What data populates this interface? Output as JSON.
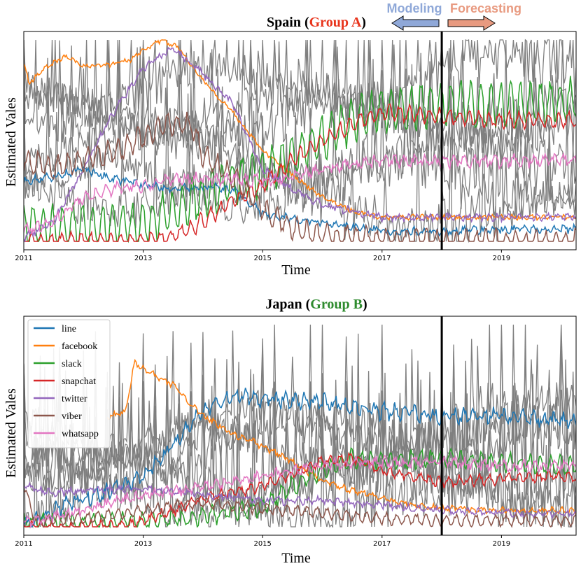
{
  "figure": {
    "modeling_label": "Modeling",
    "forecasting_label": "Forecasting",
    "colors": {
      "modeling": "#8fa8d8",
      "forecasting": "#e89a80",
      "groupA": "#e8341c",
      "groupB": "#2e8b2e"
    }
  },
  "chart_data": [
    {
      "type": "line",
      "title_country": "Spain",
      "title_group": "Group A",
      "xlabel": "Time",
      "ylabel": "Estimated Vales",
      "xlim": [
        2011.0,
        2020.25
      ],
      "ylim": [
        0,
        100
      ],
      "xticks": [
        2011,
        2013,
        2015,
        2017,
        2019
      ],
      "xtick_labels": [
        "2011",
        "2013",
        "2015",
        "2017",
        "2019"
      ],
      "split_year": 2018.0,
      "legend": false,
      "series": [
        {
          "name": "line",
          "color": "#1f77b4",
          "anchors": [
            [
              2011.0,
              30
            ],
            [
              2011.5,
              32
            ],
            [
              2012.0,
              36
            ],
            [
              2012.5,
              31
            ],
            [
              2013.0,
              28
            ],
            [
              2013.5,
              26
            ],
            [
              2014.0,
              27
            ],
            [
              2014.5,
              26
            ],
            [
              2015.0,
              14
            ],
            [
              2015.5,
              11
            ],
            [
              2016.0,
              9
            ],
            [
              2017.0,
              5
            ],
            [
              2018.0,
              5
            ],
            [
              2019.0,
              6
            ],
            [
              2020.25,
              6
            ]
          ],
          "noise": 1.5,
          "seasonal": 1.0
        },
        {
          "name": "facebook",
          "color": "#ff7f0e",
          "anchors": [
            [
              2011.0,
              88
            ],
            [
              2011.1,
              78
            ],
            [
              2011.3,
              85
            ],
            [
              2011.7,
              92
            ],
            [
              2012.0,
              87
            ],
            [
              2012.5,
              88
            ],
            [
              2012.8,
              90
            ],
            [
              2013.0,
              95
            ],
            [
              2013.3,
              100
            ],
            [
              2013.6,
              96
            ],
            [
              2014.0,
              80
            ],
            [
              2014.5,
              64
            ],
            [
              2015.0,
              45
            ],
            [
              2015.5,
              33
            ],
            [
              2016.0,
              22
            ],
            [
              2016.5,
              15
            ],
            [
              2017.0,
              12
            ],
            [
              2018.0,
              12
            ],
            [
              2019.0,
              12
            ],
            [
              2020.25,
              12
            ]
          ],
          "noise": 1.0,
          "seasonal": 0.5
        },
        {
          "name": "slack",
          "color": "#2ca02c",
          "anchors": [
            [
              2011.0,
              10
            ],
            [
              2011.2,
              6
            ],
            [
              2012.0,
              8
            ],
            [
              2013.0,
              8
            ],
            [
              2014.0,
              22
            ],
            [
              2014.5,
              30
            ],
            [
              2015.0,
              34
            ],
            [
              2015.5,
              42
            ],
            [
              2016.0,
              52
            ],
            [
              2016.5,
              60
            ],
            [
              2017.0,
              66
            ],
            [
              2018.0,
              68
            ],
            [
              2019.0,
              67
            ],
            [
              2020.25,
              70
            ]
          ],
          "noise": 3.0,
          "seasonal": 10.0
        },
        {
          "name": "snapchat",
          "color": "#d62728",
          "anchors": [
            [
              2011.0,
              0
            ],
            [
              2013.0,
              0
            ],
            [
              2013.5,
              2
            ],
            [
              2014.0,
              10
            ],
            [
              2014.5,
              20
            ],
            [
              2015.0,
              28
            ],
            [
              2015.5,
              40
            ],
            [
              2016.0,
              50
            ],
            [
              2016.5,
              58
            ],
            [
              2017.0,
              64
            ],
            [
              2018.0,
              62
            ],
            [
              2019.0,
              60
            ],
            [
              2020.25,
              60
            ]
          ],
          "noise": 1.5,
          "seasonal": 3.5
        },
        {
          "name": "twitter",
          "color": "#9467bd",
          "anchors": [
            [
              2011.0,
              2
            ],
            [
              2011.5,
              10
            ],
            [
              2012.0,
              36
            ],
            [
              2012.5,
              64
            ],
            [
              2013.0,
              86
            ],
            [
              2013.5,
              96
            ],
            [
              2014.0,
              83
            ],
            [
              2014.5,
              68
            ],
            [
              2015.0,
              36
            ],
            [
              2015.5,
              26
            ],
            [
              2016.0,
              18
            ],
            [
              2017.0,
              12
            ],
            [
              2018.0,
              12
            ],
            [
              2019.0,
              12
            ],
            [
              2020.25,
              12
            ]
          ],
          "noise": 1.5,
          "seasonal": 1.0
        },
        {
          "name": "viber",
          "color": "#8c564b",
          "anchors": [
            [
              2011.0,
              40
            ],
            [
              2011.5,
              36
            ],
            [
              2012.0,
              40
            ],
            [
              2012.5,
              44
            ],
            [
              2013.0,
              52
            ],
            [
              2013.4,
              58
            ],
            [
              2013.8,
              58
            ],
            [
              2014.0,
              42
            ],
            [
              2014.5,
              32
            ],
            [
              2015.0,
              16
            ],
            [
              2015.5,
              6
            ],
            [
              2016.0,
              3
            ],
            [
              2017.0,
              1
            ],
            [
              2018.0,
              0
            ],
            [
              2020.25,
              0
            ]
          ],
          "noise": 2.0,
          "seasonal": 5.0
        },
        {
          "name": "whatsapp",
          "color": "#e377c2",
          "anchors": [
            [
              2011.0,
              5
            ],
            [
              2011.5,
              10
            ],
            [
              2012.0,
              22
            ],
            [
              2012.5,
              26
            ],
            [
              2013.0,
              28
            ],
            [
              2013.5,
              31
            ],
            [
              2014.0,
              31
            ],
            [
              2014.5,
              31
            ],
            [
              2015.0,
              30
            ],
            [
              2015.5,
              32
            ],
            [
              2016.0,
              36
            ],
            [
              2016.5,
              38
            ],
            [
              2017.0,
              40
            ],
            [
              2018.0,
              40
            ],
            [
              2019.0,
              40
            ],
            [
              2020.25,
              40
            ]
          ],
          "noise": 2.0,
          "seasonal": 2.0
        }
      ]
    },
    {
      "type": "line",
      "title_country": "Japan",
      "title_group": "Group B",
      "xlabel": "Time",
      "ylabel": "Estimated Vales",
      "xlim": [
        2011.0,
        2020.25
      ],
      "ylim": [
        0,
        100
      ],
      "xticks": [
        2011,
        2013,
        2015,
        2017,
        2019
      ],
      "xtick_labels": [
        "2011",
        "2013",
        "2015",
        "2017",
        "2019"
      ],
      "split_year": 2018.0,
      "legend": true,
      "legend_position": "upper-left",
      "series": [
        {
          "name": "line",
          "color": "#1f77b4",
          "anchors": [
            [
              2011.0,
              0
            ],
            [
              2011.5,
              8
            ],
            [
              2012.0,
              14
            ],
            [
              2012.5,
              18
            ],
            [
              2013.0,
              25
            ],
            [
              2013.5,
              40
            ],
            [
              2014.0,
              58
            ],
            [
              2014.5,
              65
            ],
            [
              2015.0,
              63
            ],
            [
              2016.0,
              62
            ],
            [
              2017.0,
              57
            ],
            [
              2018.0,
              55
            ],
            [
              2019.0,
              55
            ],
            [
              2020.25,
              52
            ]
          ],
          "noise": 2.5,
          "seasonal": 2.5
        },
        {
          "name": "facebook",
          "color": "#ff7f0e",
          "start": 2012.4,
          "anchors": [
            [
              2012.4,
              54
            ],
            [
              2012.7,
              57
            ],
            [
              2012.85,
              81
            ],
            [
              2013.0,
              78
            ],
            [
              2013.5,
              70
            ],
            [
              2014.0,
              55
            ],
            [
              2014.5,
              46
            ],
            [
              2015.0,
              40
            ],
            [
              2015.5,
              32
            ],
            [
              2016.0,
              23
            ],
            [
              2016.5,
              18
            ],
            [
              2017.0,
              14
            ],
            [
              2017.5,
              11
            ],
            [
              2018.0,
              9
            ],
            [
              2019.0,
              8
            ],
            [
              2020.25,
              8
            ]
          ],
          "noise": 1.2,
          "seasonal": 0.8
        },
        {
          "name": "slack",
          "color": "#2ca02c",
          "anchors": [
            [
              2011.0,
              3
            ],
            [
              2012.0,
              2
            ],
            [
              2013.0,
              3
            ],
            [
              2014.0,
              5
            ],
            [
              2015.0,
              10
            ],
            [
              2015.5,
              20
            ],
            [
              2016.0,
              28
            ],
            [
              2016.5,
              34
            ],
            [
              2017.0,
              32
            ],
            [
              2018.0,
              34
            ],
            [
              2019.0,
              32
            ],
            [
              2020.25,
              30
            ]
          ],
          "noise": 2.0,
          "seasonal": 3.5
        },
        {
          "name": "snapchat",
          "color": "#d62728",
          "anchors": [
            [
              2011.0,
              0
            ],
            [
              2012.5,
              0
            ],
            [
              2012.8,
              1
            ],
            [
              2013.5,
              8
            ],
            [
              2014.0,
              14
            ],
            [
              2015.0,
              20
            ],
            [
              2015.5,
              26
            ],
            [
              2016.0,
              32
            ],
            [
              2016.5,
              34
            ],
            [
              2017.0,
              28
            ],
            [
              2018.0,
              22
            ],
            [
              2019.0,
              24
            ],
            [
              2020.25,
              25
            ]
          ],
          "noise": 1.5,
          "seasonal": 2.0
        },
        {
          "name": "twitter",
          "color": "#9467bd",
          "anchors": [
            [
              2011.0,
              20
            ],
            [
              2011.5,
              17
            ],
            [
              2012.0,
              18
            ],
            [
              2013.0,
              19
            ],
            [
              2014.0,
              16
            ],
            [
              2015.0,
              13
            ],
            [
              2016.0,
              13
            ],
            [
              2017.0,
              11
            ],
            [
              2018.0,
              8
            ],
            [
              2019.0,
              7
            ],
            [
              2020.25,
              6
            ]
          ],
          "noise": 1.5,
          "seasonal": 1.0
        },
        {
          "name": "viber",
          "color": "#8c564b",
          "anchors": [
            [
              2011.0,
              20
            ],
            [
              2011.2,
              3
            ],
            [
              2012.0,
              4
            ],
            [
              2013.0,
              8
            ],
            [
              2014.0,
              12
            ],
            [
              2015.0,
              9
            ],
            [
              2016.0,
              7
            ],
            [
              2017.0,
              4
            ],
            [
              2018.0,
              3
            ],
            [
              2019.0,
              3
            ],
            [
              2020.25,
              3
            ]
          ],
          "noise": 1.0,
          "seasonal": 2.5
        },
        {
          "name": "whatsapp",
          "color": "#e377c2",
          "anchors": [
            [
              2011.0,
              2
            ],
            [
              2012.0,
              8
            ],
            [
              2013.0,
              16
            ],
            [
              2014.0,
              20
            ],
            [
              2015.0,
              25
            ],
            [
              2015.5,
              28
            ],
            [
              2016.0,
              30
            ],
            [
              2016.5,
              32
            ],
            [
              2017.0,
              32
            ],
            [
              2018.0,
              32
            ],
            [
              2019.0,
              30
            ],
            [
              2020.25,
              30
            ]
          ],
          "noise": 2.0,
          "seasonal": 1.5
        }
      ]
    }
  ]
}
